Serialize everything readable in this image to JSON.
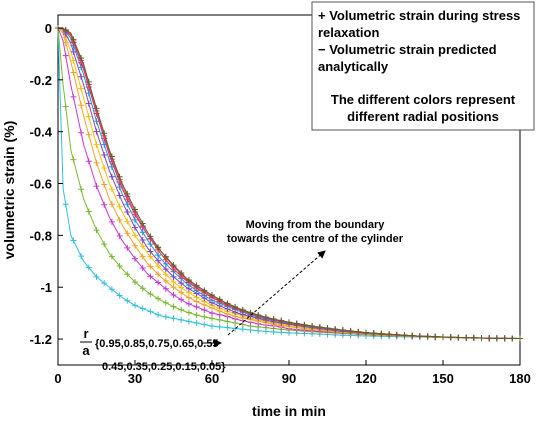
{
  "chart_data": {
    "type": "line",
    "xlabel": "time in min",
    "ylabel": "volumetric strain (%)",
    "xlim": [
      0,
      180
    ],
    "ylim": [
      -1.3,
      0.05
    ],
    "xticks": [
      0,
      30,
      60,
      90,
      120,
      150,
      180
    ],
    "xtick_labels": [
      "0",
      "30",
      "60",
      "90",
      "120",
      "150",
      "180"
    ],
    "yticks": [
      0,
      -0.2,
      -0.4,
      -0.6,
      -0.8,
      -1,
      -1.2
    ],
    "ytick_labels": [
      "0",
      "-0.2",
      "-0.4",
      "-0.6",
      "-0.8",
      "-1",
      "-1.2"
    ],
    "grid": false,
    "legend": {
      "position": "top-right",
      "lines": [
        "+ Volumetric strain during stress",
        "relaxation",
        "− Volumetric strain predicted",
        "analytically",
        "",
        "The different colors represent",
        "different radial positions"
      ]
    },
    "annotations": {
      "arrow_text": [
        "Moving from the boundary",
        "towards the centre of the cylinder"
      ],
      "ratio_numerator": "r",
      "ratio_denominator": "a",
      "positions_line1": "{0.95,0.85,0.75,0.65,0.55",
      "positions_line2": "0.45,0.35,0.25,0.15,0.05}"
    },
    "x": [
      0,
      2,
      5,
      10,
      15,
      20,
      25,
      30,
      35,
      40,
      45,
      50,
      55,
      60,
      65,
      70,
      75,
      80,
      85,
      90,
      100,
      110,
      120,
      130,
      140,
      150,
      160,
      170,
      180
    ],
    "series": [
      {
        "color": "#33c0dd",
        "values": [
          0,
          -0.62,
          -0.8,
          -0.9,
          -0.96,
          -1.0,
          -1.04,
          -1.07,
          -1.09,
          -1.11,
          -1.12,
          -1.13,
          -1.14,
          -1.15,
          -1.155,
          -1.16,
          -1.165,
          -1.17,
          -1.173,
          -1.176,
          -1.18,
          -1.185,
          -1.188,
          -1.19,
          -1.192,
          -1.194,
          -1.196,
          -1.197,
          -1.198
        ]
      },
      {
        "color": "#77b833",
        "values": [
          0,
          -0.22,
          -0.47,
          -0.66,
          -0.78,
          -0.87,
          -0.93,
          -0.98,
          -1.02,
          -1.05,
          -1.075,
          -1.095,
          -1.11,
          -1.12,
          -1.13,
          -1.14,
          -1.15,
          -1.155,
          -1.16,
          -1.165,
          -1.172,
          -1.178,
          -1.183,
          -1.187,
          -1.19,
          -1.193,
          -1.195,
          -1.197,
          -1.198
        ]
      },
      {
        "color": "#c03ad0",
        "values": [
          0,
          -0.05,
          -0.22,
          -0.45,
          -0.61,
          -0.73,
          -0.82,
          -0.89,
          -0.95,
          -0.99,
          -1.03,
          -1.06,
          -1.08,
          -1.1,
          -1.11,
          -1.125,
          -1.135,
          -1.145,
          -1.15,
          -1.16,
          -1.17,
          -1.176,
          -1.182,
          -1.186,
          -1.19,
          -1.193,
          -1.195,
          -1.197,
          -1.198
        ]
      },
      {
        "color": "#f0a030",
        "values": [
          0,
          -0.02,
          -0.13,
          -0.34,
          -0.52,
          -0.66,
          -0.76,
          -0.84,
          -0.91,
          -0.96,
          -1.0,
          -1.035,
          -1.06,
          -1.08,
          -1.1,
          -1.115,
          -1.125,
          -1.135,
          -1.145,
          -1.152,
          -1.165,
          -1.174,
          -1.181,
          -1.186,
          -1.19,
          -1.193,
          -1.195,
          -1.197,
          -1.198
        ]
      },
      {
        "color": "#f5c000",
        "values": [
          0,
          -0.01,
          -0.09,
          -0.27,
          -0.45,
          -0.6,
          -0.71,
          -0.8,
          -0.87,
          -0.93,
          -0.98,
          -1.015,
          -1.045,
          -1.07,
          -1.09,
          -1.105,
          -1.12,
          -1.13,
          -1.14,
          -1.148,
          -1.162,
          -1.172,
          -1.18,
          -1.185,
          -1.19,
          -1.193,
          -1.195,
          -1.197,
          -1.198
        ]
      },
      {
        "color": "#8040c0",
        "values": [
          0,
          -0.005,
          -0.06,
          -0.22,
          -0.4,
          -0.55,
          -0.67,
          -0.77,
          -0.85,
          -0.91,
          -0.96,
          -1.0,
          -1.03,
          -1.06,
          -1.08,
          -1.1,
          -1.113,
          -1.125,
          -1.135,
          -1.143,
          -1.158,
          -1.17,
          -1.178,
          -1.184,
          -1.189,
          -1.192,
          -1.195,
          -1.197,
          -1.198
        ]
      },
      {
        "color": "#2090e0",
        "values": [
          0,
          -0.003,
          -0.04,
          -0.18,
          -0.36,
          -0.51,
          -0.64,
          -0.74,
          -0.82,
          -0.89,
          -0.94,
          -0.985,
          -1.02,
          -1.05,
          -1.07,
          -1.09,
          -1.107,
          -1.12,
          -1.13,
          -1.14,
          -1.155,
          -1.168,
          -1.177,
          -1.183,
          -1.188,
          -1.192,
          -1.195,
          -1.197,
          -1.198
        ]
      },
      {
        "color": "#e03030",
        "values": [
          0,
          -0.002,
          -0.03,
          -0.16,
          -0.33,
          -0.49,
          -0.62,
          -0.72,
          -0.8,
          -0.87,
          -0.93,
          -0.975,
          -1.01,
          -1.04,
          -1.065,
          -1.085,
          -1.103,
          -1.117,
          -1.128,
          -1.138,
          -1.153,
          -1.166,
          -1.176,
          -1.183,
          -1.188,
          -1.192,
          -1.195,
          -1.197,
          -1.198
        ]
      },
      {
        "color": "#e040a0",
        "values": [
          0,
          -0.001,
          -0.025,
          -0.15,
          -0.32,
          -0.48,
          -0.61,
          -0.71,
          -0.8,
          -0.86,
          -0.92,
          -0.97,
          -1.005,
          -1.035,
          -1.06,
          -1.082,
          -1.1,
          -1.115,
          -1.126,
          -1.136,
          -1.152,
          -1.165,
          -1.175,
          -1.182,
          -1.188,
          -1.192,
          -1.195,
          -1.197,
          -1.198
        ]
      },
      {
        "color": "#606020",
        "values": [
          0,
          -0.001,
          -0.02,
          -0.14,
          -0.31,
          -0.47,
          -0.6,
          -0.7,
          -0.79,
          -0.86,
          -0.915,
          -0.965,
          -1.0,
          -1.03,
          -1.058,
          -1.08,
          -1.098,
          -1.113,
          -1.125,
          -1.135,
          -1.151,
          -1.164,
          -1.175,
          -1.182,
          -1.188,
          -1.192,
          -1.195,
          -1.197,
          -1.198
        ]
      }
    ]
  }
}
